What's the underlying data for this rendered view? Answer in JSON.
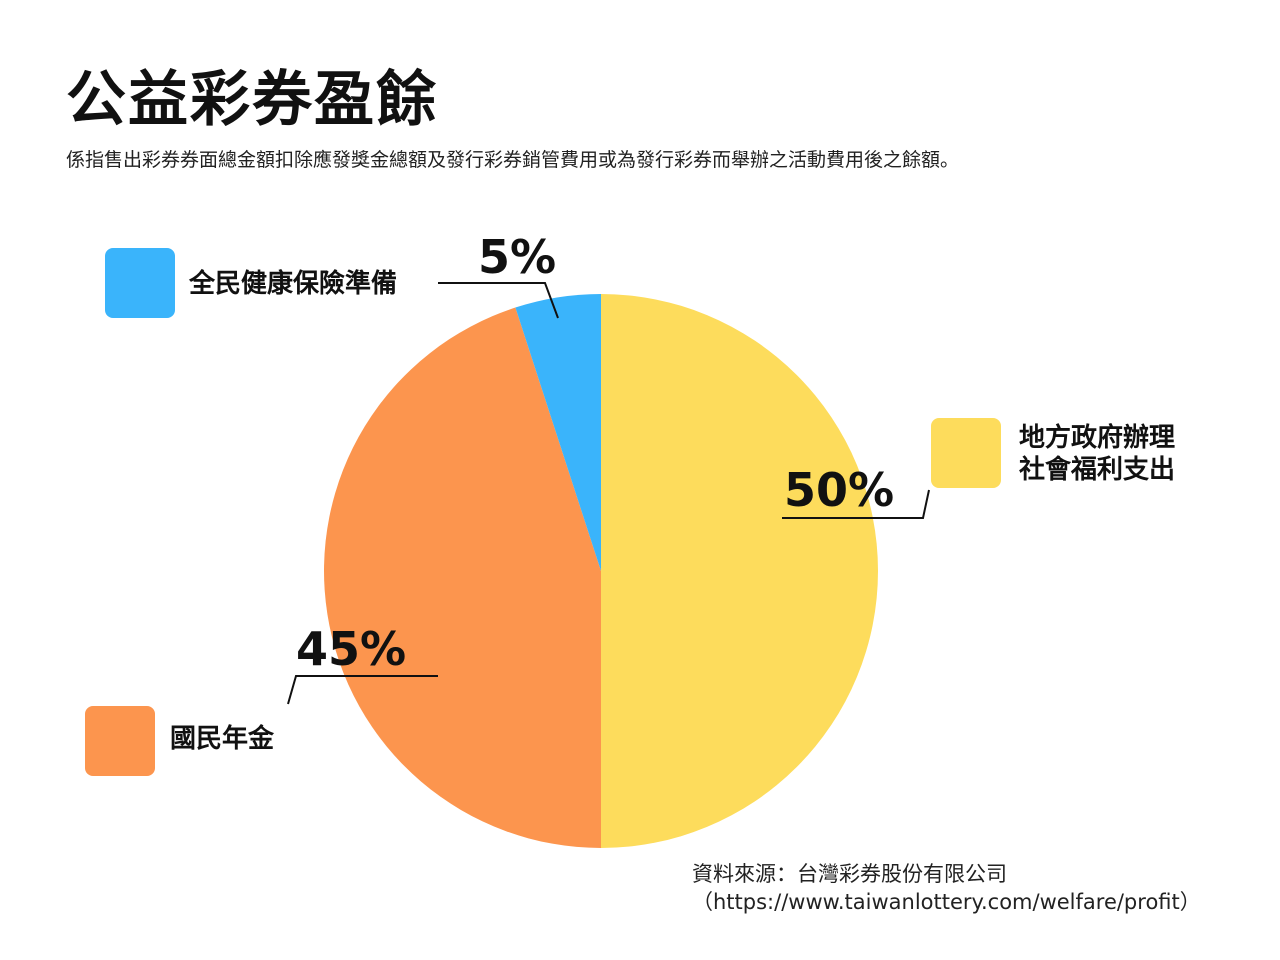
{
  "title": "公益彩券盈餘",
  "subtitle": "係指售出彩券券面總金額扣除應發獎金總額及發行彩券銷管費用或為發行彩券而舉辦之活動費用後之餘額。",
  "source_line1": "資料來源：台灣彩券股份有限公司",
  "source_line2": "（https://www.taiwanlottery.com/welfare/profit）",
  "chart_data": {
    "type": "pie",
    "slices": [
      {
        "label": "地方政府辦理社會福利支出",
        "label_lines": [
          "地方政府辦理",
          "社會福利支出"
        ],
        "value": 50,
        "value_label": "50%",
        "color": "#FDDC5C"
      },
      {
        "label": "國民年金",
        "label_lines": [
          "國民年金"
        ],
        "value": 45,
        "value_label": "45%",
        "color": "#FC954E"
      },
      {
        "label": "全民健康保險準備",
        "label_lines": [
          "全民健康保險準備"
        ],
        "value": 5,
        "value_label": "5%",
        "color": "#3AB4FB"
      }
    ],
    "start": "12 o'clock",
    "direction": "clockwise"
  }
}
